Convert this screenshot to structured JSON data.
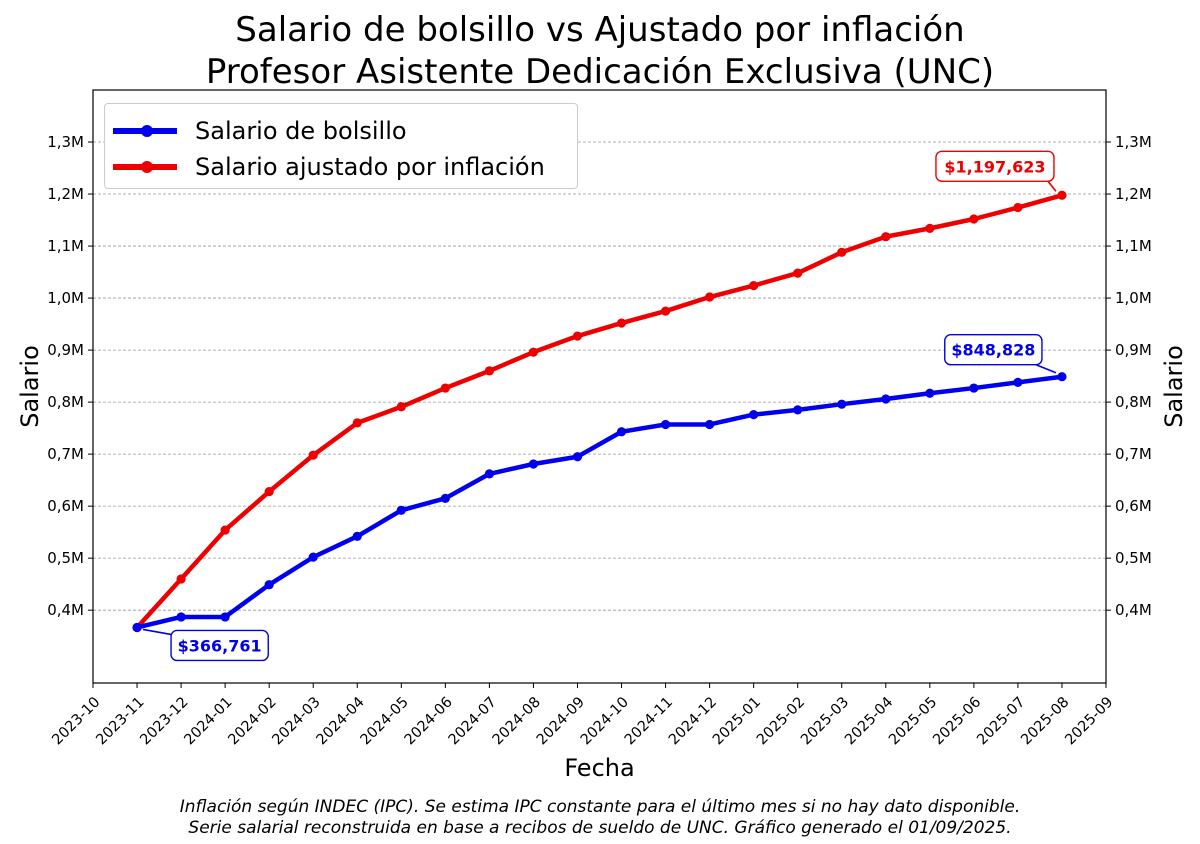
{
  "title": "Salario de bolsillo vs Ajustado por inflación",
  "subtitle": "Profesor Asistente Dedicación Exclusiva (UNC)",
  "footnote": {
    "line1": "Inflación según INDEC (IPC). Se estima IPC constante para el último mes si no hay dato disponible.",
    "line2": "Serie salarial reconstruida en base a recibos de sueldo de UNC. Gráfico generado el 01/09/2025."
  },
  "colors": {
    "nominal": "#0000ee",
    "adjusted": "#ee0000",
    "grid": "#999999"
  },
  "chart_data": {
    "type": "line",
    "xlabel": "Fecha",
    "ylabel": "Salario",
    "ylabel_right": "Salario",
    "grid": true,
    "legend_position": "top-left",
    "xlim": [
      "2023-10",
      "2025-09"
    ],
    "ylim": [
      260000,
      1400000
    ],
    "x_ticks": [
      "2023-10",
      "2023-11",
      "2023-12",
      "2024-01",
      "2024-02",
      "2024-03",
      "2024-04",
      "2024-05",
      "2024-06",
      "2024-07",
      "2024-08",
      "2024-09",
      "2024-10",
      "2024-11",
      "2024-12",
      "2025-01",
      "2025-02",
      "2025-03",
      "2025-04",
      "2025-05",
      "2025-06",
      "2025-07",
      "2025-08",
      "2025-09"
    ],
    "y_ticks": [
      {
        "value": 400000,
        "label": "0,4M"
      },
      {
        "value": 500000,
        "label": "0,5M"
      },
      {
        "value": 600000,
        "label": "0,6M"
      },
      {
        "value": 700000,
        "label": "0,7M"
      },
      {
        "value": 800000,
        "label": "0,8M"
      },
      {
        "value": 900000,
        "label": "0,9M"
      },
      {
        "value": 1000000,
        "label": "1,0M"
      },
      {
        "value": 1100000,
        "label": "1,1M"
      },
      {
        "value": 1200000,
        "label": "1,2M"
      },
      {
        "value": 1300000,
        "label": "1,3M"
      }
    ],
    "x": [
      "2023-11",
      "2023-12",
      "2024-01",
      "2024-02",
      "2024-03",
      "2024-04",
      "2024-05",
      "2024-06",
      "2024-07",
      "2024-08",
      "2024-09",
      "2024-10",
      "2024-11",
      "2024-12",
      "2025-01",
      "2025-02",
      "2025-03",
      "2025-04",
      "2025-05",
      "2025-06",
      "2025-07",
      "2025-08"
    ],
    "series": [
      {
        "name": "Salario de bolsillo",
        "color": "#0000ee",
        "values": [
          366761,
          387000,
          387000,
          449000,
          502000,
          542000,
          592000,
          615000,
          662000,
          681000,
          695000,
          743000,
          757000,
          757000,
          776000,
          785000,
          796000,
          806000,
          817000,
          827000,
          838000,
          848828
        ]
      },
      {
        "name": "Salario ajustado por inflación",
        "color": "#ee0000",
        "values": [
          366761,
          460000,
          554000,
          628000,
          698000,
          760000,
          791000,
          827000,
          860000,
          896000,
          927000,
          952000,
          975000,
          1002000,
          1024000,
          1048000,
          1088000,
          1118000,
          1134000,
          1152000,
          1174000,
          1197623
        ]
      }
    ],
    "annotations": [
      {
        "text": "$366,761",
        "x": "2023-11",
        "y": 366761,
        "series": 0
      },
      {
        "text": "$848,828",
        "x": "2025-08",
        "y": 848828,
        "series": 0
      },
      {
        "text": "$1,197,623",
        "x": "2025-08",
        "y": 1197623,
        "series": 1
      }
    ]
  }
}
